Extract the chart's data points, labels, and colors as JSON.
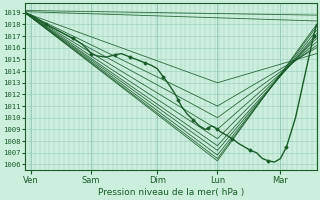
{
  "xlabel": "Pression niveau de la mer( hPa )",
  "bg_color": "#cceedd",
  "grid_color": "#99ccbb",
  "line_color": "#1a5c2a",
  "tick_color": "#1a5c2a",
  "spine_color": "#1a5c2a",
  "ylim": [
    1005.5,
    1019.8
  ],
  "yticks": [
    1006,
    1007,
    1008,
    1009,
    1010,
    1011,
    1012,
    1013,
    1014,
    1015,
    1016,
    1017,
    1018,
    1019
  ],
  "xlim": [
    0.0,
    4.85
  ],
  "xtick_positions": [
    0.1,
    1.1,
    2.2,
    3.2,
    4.25
  ],
  "xtick_labels": [
    "Ven",
    "Sam",
    "Dim",
    "Lun",
    "Mar"
  ],
  "day_vlines": [
    0.1,
    1.1,
    2.2,
    3.2,
    4.25
  ],
  "n_minor_per_day": 12,
  "ensemble_lines": [
    {
      "x": [
        0.0,
        4.85
      ],
      "y": [
        1019.2,
        1018.8
      ]
    },
    {
      "x": [
        0.0,
        4.85
      ],
      "y": [
        1019.1,
        1018.3
      ]
    },
    {
      "x": [
        0.0,
        3.2,
        4.85
      ],
      "y": [
        1019.0,
        1006.3,
        1018.0
      ]
    },
    {
      "x": [
        0.0,
        3.2,
        4.85
      ],
      "y": [
        1019.0,
        1006.5,
        1017.8
      ]
    },
    {
      "x": [
        0.0,
        3.2,
        4.85
      ],
      "y": [
        1019.0,
        1006.8,
        1017.5
      ]
    },
    {
      "x": [
        0.0,
        3.2,
        4.85
      ],
      "y": [
        1019.0,
        1007.2,
        1017.2
      ]
    },
    {
      "x": [
        0.0,
        3.2,
        4.85
      ],
      "y": [
        1019.0,
        1007.6,
        1017.0
      ]
    },
    {
      "x": [
        0.0,
        3.2,
        4.85
      ],
      "y": [
        1019.0,
        1008.2,
        1016.8
      ]
    },
    {
      "x": [
        0.0,
        3.2,
        4.85
      ],
      "y": [
        1019.0,
        1009.0,
        1016.5
      ]
    },
    {
      "x": [
        0.0,
        3.2,
        4.85
      ],
      "y": [
        1019.0,
        1010.0,
        1016.2
      ]
    },
    {
      "x": [
        0.0,
        3.2,
        4.85
      ],
      "y": [
        1019.0,
        1011.0,
        1016.0
      ]
    },
    {
      "x": [
        0.0,
        3.2,
        4.85
      ],
      "y": [
        1019.0,
        1013.0,
        1015.5
      ]
    }
  ],
  "main_line": {
    "x": [
      0.0,
      0.1,
      0.2,
      0.35,
      0.5,
      0.65,
      0.8,
      0.95,
      1.05,
      1.1,
      1.2,
      1.35,
      1.5,
      1.6,
      1.65,
      1.75,
      1.85,
      1.95,
      2.0,
      2.1,
      2.2,
      2.3,
      2.4,
      2.5,
      2.55,
      2.6,
      2.7,
      2.8,
      2.9,
      3.0,
      3.05,
      3.1,
      3.15,
      3.2,
      3.25,
      3.35,
      3.45,
      3.55,
      3.65,
      3.75,
      3.85,
      3.95,
      4.05,
      4.15,
      4.25,
      4.35,
      4.5,
      4.65,
      4.8,
      4.85
    ],
    "y": [
      1019.0,
      1018.8,
      1018.5,
      1018.0,
      1017.6,
      1017.2,
      1016.8,
      1016.3,
      1015.8,
      1015.5,
      1015.3,
      1015.2,
      1015.4,
      1015.5,
      1015.4,
      1015.2,
      1015.0,
      1014.8,
      1014.7,
      1014.5,
      1014.2,
      1013.5,
      1012.8,
      1012.0,
      1011.5,
      1011.0,
      1010.3,
      1009.8,
      1009.3,
      1009.0,
      1009.1,
      1009.3,
      1009.2,
      1009.0,
      1008.8,
      1008.5,
      1008.2,
      1007.8,
      1007.5,
      1007.2,
      1007.0,
      1006.5,
      1006.3,
      1006.2,
      1006.5,
      1007.5,
      1010.0,
      1013.5,
      1017.0,
      1018.0
    ]
  }
}
